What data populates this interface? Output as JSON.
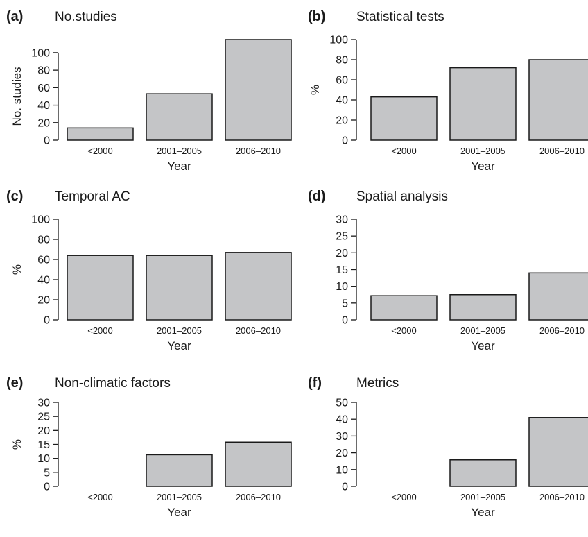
{
  "colors": {
    "bar_fill": "#c4c5c7",
    "stroke": "#1a1a1a"
  },
  "chart_data": [
    {
      "type": "bar",
      "panel": "(a)",
      "title": "No.studies",
      "xlabel": "Year",
      "ylabel": "No. studies",
      "categories": [
        "<2000",
        "2001–2005",
        "2006–2010"
      ],
      "values": [
        14,
        53,
        115
      ],
      "ylim": [
        0,
        115
      ],
      "yticks": [
        0,
        20,
        40,
        60,
        80,
        100
      ]
    },
    {
      "type": "bar",
      "panel": "(b)",
      "title": "Statistical tests",
      "xlabel": "Year",
      "ylabel": "%",
      "categories": [
        "<2000",
        "2001–2005",
        "2006–2010"
      ],
      "values": [
        43,
        72,
        80
      ],
      "ylim": [
        0,
        100
      ],
      "yticks": [
        0,
        20,
        40,
        60,
        80,
        100
      ]
    },
    {
      "type": "bar",
      "panel": "(c)",
      "title": "Temporal AC",
      "xlabel": "Year",
      "ylabel": "%",
      "categories": [
        "<2000",
        "2001–2005",
        "2006–2010"
      ],
      "values": [
        64,
        64,
        67
      ],
      "ylim": [
        0,
        100
      ],
      "yticks": [
        0,
        20,
        40,
        60,
        80,
        100
      ]
    },
    {
      "type": "bar",
      "panel": "(d)",
      "title": "Spatial analysis",
      "xlabel": "Year",
      "ylabel": "",
      "categories": [
        "<2000",
        "2001–2005",
        "2006–2010"
      ],
      "values": [
        7.2,
        7.5,
        14
      ],
      "ylim": [
        0,
        30
      ],
      "yticks": [
        0,
        5,
        10,
        15,
        20,
        25,
        30
      ]
    },
    {
      "type": "bar",
      "panel": "(e)",
      "title": "Non-climatic factors",
      "xlabel": "Year",
      "ylabel": "%",
      "categories": [
        "<2000",
        "2001–2005",
        "2006–2010"
      ],
      "values": [
        0,
        11.3,
        15.8
      ],
      "ylim": [
        0,
        30
      ],
      "yticks": [
        0,
        5,
        10,
        15,
        20,
        25,
        30
      ]
    },
    {
      "type": "bar",
      "panel": "(f)",
      "title": "Metrics",
      "xlabel": "Year",
      "ylabel": "",
      "categories": [
        "<2000",
        "2001–2005",
        "2006–2010"
      ],
      "values": [
        0,
        15.8,
        41
      ],
      "ylim": [
        0,
        50
      ],
      "yticks": [
        0,
        10,
        20,
        30,
        40,
        50
      ]
    }
  ]
}
